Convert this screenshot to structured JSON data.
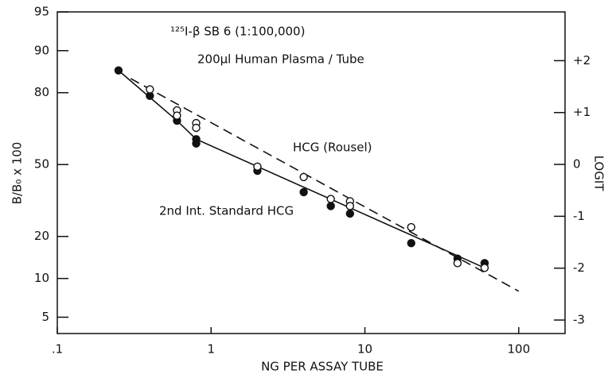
{
  "chart_data": {
    "type": "scatter",
    "x_label": "NG PER ASSAY TUBE",
    "y_label": "B/B₀ x 100",
    "y2_label": "LOGIT",
    "xscale": "log",
    "yscale": "logit",
    "xlim": [
      0.1,
      200
    ],
    "ylim": [
      3.7,
      95
    ],
    "y2lim": [
      -3.26,
      2.94
    ],
    "xticks": [
      {
        "value": 0.1,
        "label": ".1"
      },
      1,
      10,
      100
    ],
    "yticks": [
      5,
      10,
      20,
      50,
      80,
      90,
      95
    ],
    "y2ticks": [
      {
        "value": 2,
        "label": "+2"
      },
      {
        "value": 1,
        "label": "+1"
      },
      0,
      -1,
      -2,
      -3
    ],
    "annotations": [
      "¹²⁵I-β  SB 6 (1:100,000)",
      "200μl Human Plasma / Tube",
      "HCG (Rousel)",
      "2nd Int. Standard HCG"
    ],
    "series": [
      {
        "kind": "points",
        "marker": "filled",
        "color": "#111",
        "x": [
          0.25,
          0.4,
          0.6,
          0.8,
          0.8,
          2,
          4,
          6,
          8,
          20,
          40,
          60
        ],
        "values": [
          86,
          79,
          70,
          62,
          60,
          47,
          37,
          31,
          28,
          18,
          14,
          13
        ]
      },
      {
        "kind": "points",
        "marker": "open",
        "color": "#111",
        "x": [
          0.4,
          0.6,
          0.6,
          0.8,
          0.8,
          2,
          4,
          6,
          8,
          8,
          20,
          40,
          60
        ],
        "values": [
          81,
          74,
          72,
          69,
          67,
          49,
          44,
          34,
          33,
          31,
          23,
          13,
          12
        ]
      },
      {
        "kind": "line",
        "dash": false,
        "color": "#111",
        "x": [
          0.25,
          0.6,
          0.8,
          60
        ],
        "values": [
          86,
          70,
          62,
          12
        ]
      },
      {
        "kind": "line",
        "dash": true,
        "color": "#111",
        "x": [
          0.3,
          100
        ],
        "values": [
          84,
          8
        ]
      }
    ]
  }
}
